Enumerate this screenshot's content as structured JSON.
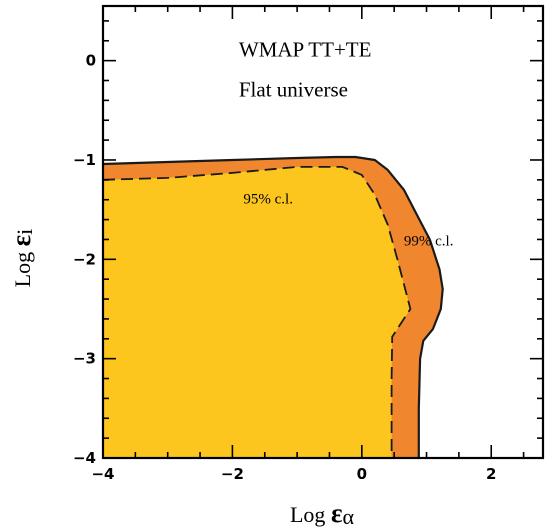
{
  "chart_data": {
    "type": "area",
    "title": "",
    "xlabel": {
      "prefix": "Log ",
      "symbol": "ε",
      "subscript": "α"
    },
    "ylabel": {
      "prefix": "Log ",
      "symbol": "ε",
      "subscript": "i"
    },
    "xlim": [
      -4,
      2.8
    ],
    "ylim": [
      -4,
      0.55
    ],
    "x_ticks": [
      -4,
      -2,
      0,
      2
    ],
    "x_tick_labels": [
      "−4",
      "−2",
      "0",
      "2"
    ],
    "y_ticks": [
      -4,
      -3,
      -2,
      -1,
      0
    ],
    "y_tick_labels": [
      "−4",
      "−3",
      "−2",
      "−1",
      "0"
    ],
    "grid": false,
    "annotations": [
      {
        "text": "WMAP TT+TE",
        "x": -1.9,
        "y": 0.04
      },
      {
        "text": "Flat universe",
        "x": -1.9,
        "y": -0.36
      },
      {
        "text": "95% c.l.",
        "x": -1.83,
        "y": -1.44
      },
      {
        "text": "99% c.l.",
        "x": 0.65,
        "y": -1.86
      }
    ],
    "series": [
      {
        "name": "99% c.l.",
        "color": "#f0862e",
        "boundary_style": "solid",
        "boundary": [
          [
            -4.0,
            -1.04
          ],
          [
            -3.0,
            -1.02
          ],
          [
            -2.0,
            -1.0
          ],
          [
            -1.0,
            -0.98
          ],
          [
            -0.4,
            -0.97
          ],
          [
            -0.1,
            -0.97
          ],
          [
            0.2,
            -1.0
          ],
          [
            0.4,
            -1.1
          ],
          [
            0.65,
            -1.3
          ],
          [
            0.85,
            -1.55
          ],
          [
            1.05,
            -1.8
          ],
          [
            1.2,
            -2.1
          ],
          [
            1.25,
            -2.3
          ],
          [
            1.22,
            -2.5
          ],
          [
            1.1,
            -2.7
          ],
          [
            0.95,
            -2.82
          ],
          [
            0.9,
            -3.0
          ],
          [
            0.88,
            -3.5
          ],
          [
            0.88,
            -4.0
          ],
          [
            -4.0,
            -4.0
          ]
        ]
      },
      {
        "name": "95% c.l.",
        "color": "#fdc61f",
        "boundary_style": "dashed",
        "boundary": [
          [
            -4.0,
            -1.2
          ],
          [
            -3.0,
            -1.18
          ],
          [
            -2.0,
            -1.13
          ],
          [
            -1.0,
            -1.07
          ],
          [
            -0.3,
            -1.07
          ],
          [
            0.0,
            -1.15
          ],
          [
            0.2,
            -1.35
          ],
          [
            0.4,
            -1.65
          ],
          [
            0.55,
            -2.0
          ],
          [
            0.67,
            -2.3
          ],
          [
            0.75,
            -2.5
          ],
          [
            0.6,
            -2.65
          ],
          [
            0.47,
            -2.78
          ],
          [
            0.46,
            -3.2
          ],
          [
            0.46,
            -4.0
          ],
          [
            -4.0,
            -4.0
          ]
        ]
      }
    ]
  }
}
